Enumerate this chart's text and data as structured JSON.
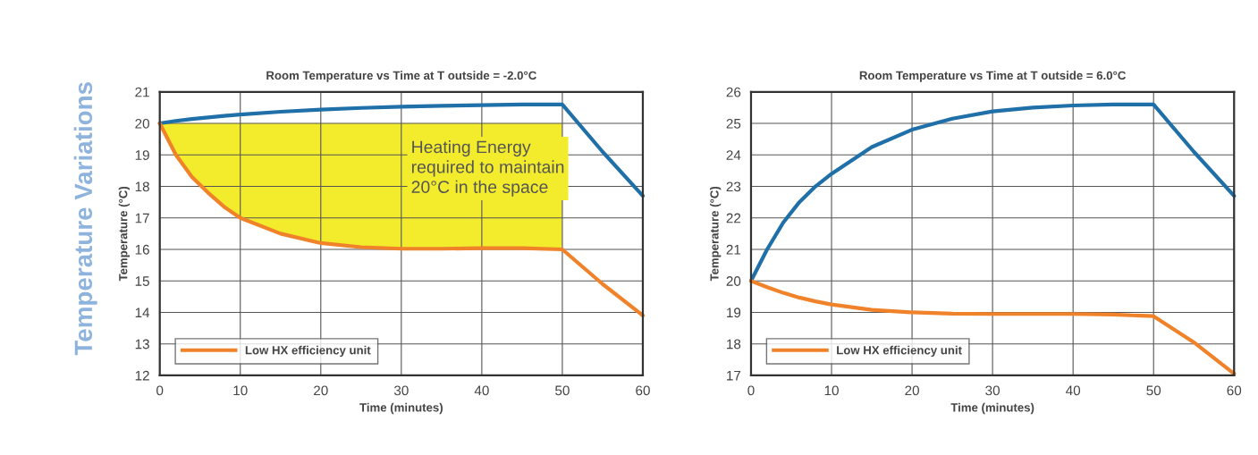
{
  "chart_data": [
    {
      "type": "line",
      "title": "Room Temperature vs Time at T outside = -2.0°C",
      "xlabel": "Time (minutes)",
      "ylabel": "Temperature (°C)",
      "x": [
        0,
        2,
        4,
        6,
        8,
        10,
        15,
        20,
        25,
        30,
        35,
        40,
        45,
        50,
        55,
        60
      ],
      "series": [
        {
          "color": "#1f6fa8",
          "values": [
            20,
            20.08,
            20.14,
            20.19,
            20.24,
            20.28,
            20.37,
            20.44,
            20.49,
            20.53,
            20.56,
            20.58,
            20.6,
            20.6,
            19.1,
            17.7
          ]
        },
        {
          "name": "Low HX efficiency unit",
          "color": "#f0822a",
          "values": [
            20,
            19.0,
            18.3,
            17.8,
            17.35,
            17.0,
            16.5,
            16.2,
            16.07,
            16.02,
            16.02,
            16.04,
            16.04,
            16.0,
            14.9,
            13.9
          ],
          "lower": [
            20,
            19.0,
            18.3,
            17.8,
            17.35,
            17.0,
            16.5,
            16.2,
            16.07,
            16.02,
            16.02,
            16.04,
            16.04,
            16.0,
            null,
            null
          ],
          "upper": [
            20,
            20,
            20,
            20,
            20,
            20,
            20,
            20,
            20,
            20,
            20,
            20,
            20,
            20,
            null,
            null
          ]
        }
      ],
      "xlim": [
        0,
        60
      ],
      "xticks": [
        0,
        10,
        20,
        30,
        40,
        50,
        60
      ],
      "ylim": [
        12,
        21
      ],
      "yticks": [
        12,
        13,
        14,
        15,
        16,
        17,
        18,
        19,
        20,
        21
      ],
      "grid": true,
      "legend": "bottom left",
      "annotations": [
        "Heating Energy\nrequired to maintain\n20°C in the space",
        "Temperature Variations"
      ]
    },
    {
      "type": "line",
      "title": "Room Temperature vs Time at T outside = 6.0°C",
      "xlabel": "Time (minutes)",
      "ylabel": "Temperature (°C)",
      "x": [
        0,
        2,
        4,
        6,
        8,
        10,
        15,
        20,
        25,
        30,
        35,
        40,
        45,
        50,
        55,
        60
      ],
      "series": [
        {
          "color": "#1f6fa8",
          "values": [
            20,
            21.0,
            21.85,
            22.5,
            23.0,
            23.4,
            24.25,
            24.8,
            25.15,
            25.38,
            25.5,
            25.57,
            25.6,
            25.6,
            24.1,
            22.7
          ]
        },
        {
          "name": "Low HX efficiency unit",
          "color": "#f0822a",
          "values": [
            20,
            19.8,
            19.62,
            19.47,
            19.35,
            19.25,
            19.08,
            19.0,
            18.96,
            18.95,
            18.95,
            18.95,
            18.93,
            18.88,
            18.05,
            17.05
          ]
        }
      ],
      "xlim": [
        0,
        60
      ],
      "xticks": [
        0,
        10,
        20,
        30,
        40,
        50,
        60
      ],
      "ylim": [
        17,
        26
      ],
      "yticks": [
        17,
        18,
        19,
        20,
        21,
        22,
        23,
        24,
        25,
        26
      ],
      "grid": true,
      "legend": "bottom left"
    }
  ]
}
